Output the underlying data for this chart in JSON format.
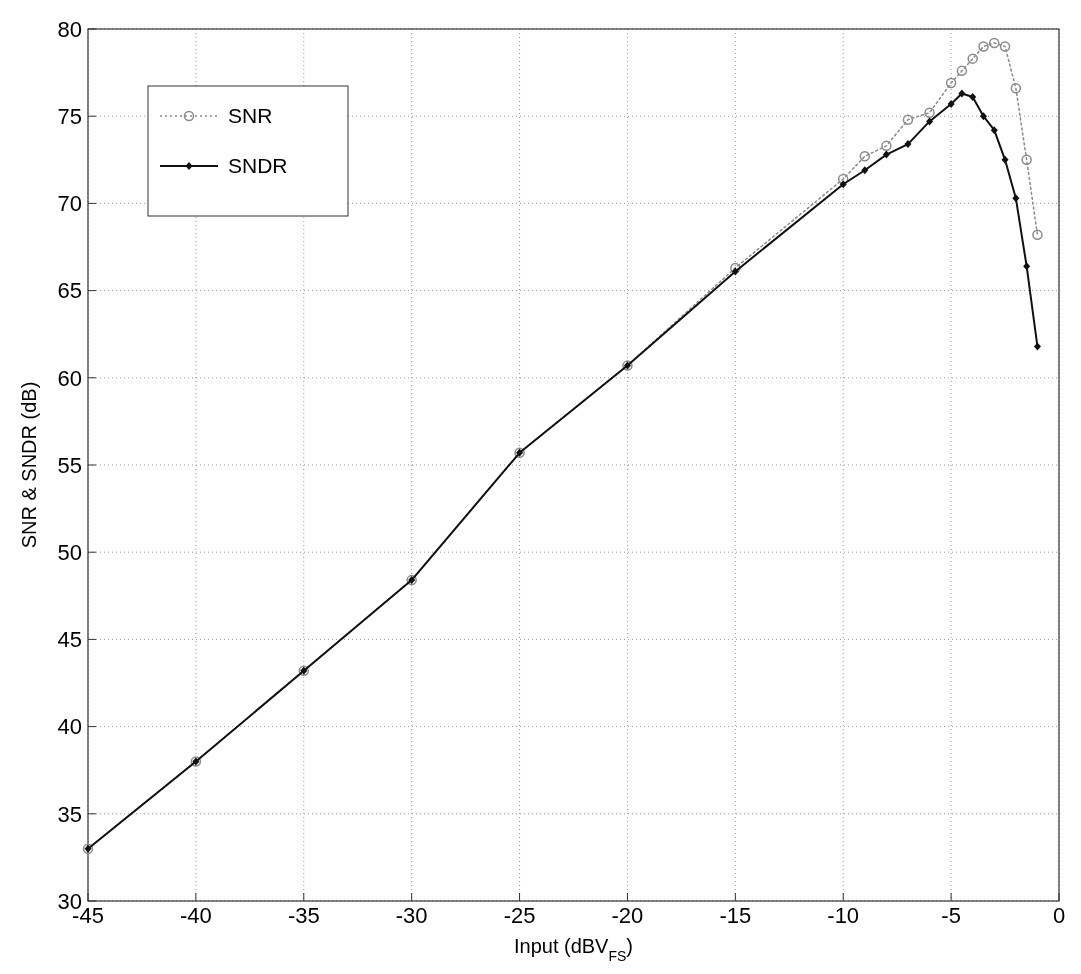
{
  "chart_data": {
    "type": "line",
    "xlabel": "Input (dBV$_{FS}$)",
    "ylabel": "SNR & SNDR (dB)",
    "xlim": [
      -45,
      0
    ],
    "ylim": [
      30,
      80
    ],
    "xticks": [
      -45,
      -40,
      -35,
      -30,
      -25,
      -20,
      -15,
      -10,
      -5,
      0
    ],
    "yticks": [
      30,
      35,
      40,
      45,
      50,
      55,
      60,
      65,
      70,
      75,
      80
    ],
    "grid": true,
    "legend": "top left",
    "series": [
      {
        "name": "SNR",
        "color": "#8a8a8a",
        "marker": "circle",
        "line_style": "dotted",
        "x": [
          -45,
          -40,
          -35,
          -30,
          -25,
          -20,
          -15,
          -10,
          -9,
          -8,
          -7,
          -6,
          -5,
          -4.5,
          -4,
          -3.5,
          -3,
          -2.5,
          -2,
          -1.5,
          -1
        ],
        "values": [
          33.0,
          38.0,
          43.2,
          48.4,
          55.7,
          60.7,
          66.3,
          71.4,
          72.7,
          73.3,
          74.8,
          75.2,
          76.9,
          77.6,
          78.3,
          79.0,
          79.2,
          79.0,
          76.6,
          72.5,
          68.2
        ]
      },
      {
        "name": "SNDR",
        "color": "#111111",
        "marker": "diamond",
        "line_style": "solid",
        "x": [
          -45,
          -40,
          -35,
          -30,
          -25,
          -20,
          -15,
          -10,
          -9,
          -8,
          -7,
          -6,
          -5,
          -4.5,
          -4,
          -3.5,
          -3,
          -2.5,
          -2,
          -1.5,
          -1
        ],
        "values": [
          33.0,
          38.0,
          43.2,
          48.4,
          55.7,
          60.7,
          66.1,
          71.1,
          71.9,
          72.8,
          73.4,
          74.7,
          75.7,
          76.3,
          76.1,
          75.0,
          74.2,
          72.5,
          70.3,
          66.4,
          61.8
        ]
      }
    ]
  }
}
